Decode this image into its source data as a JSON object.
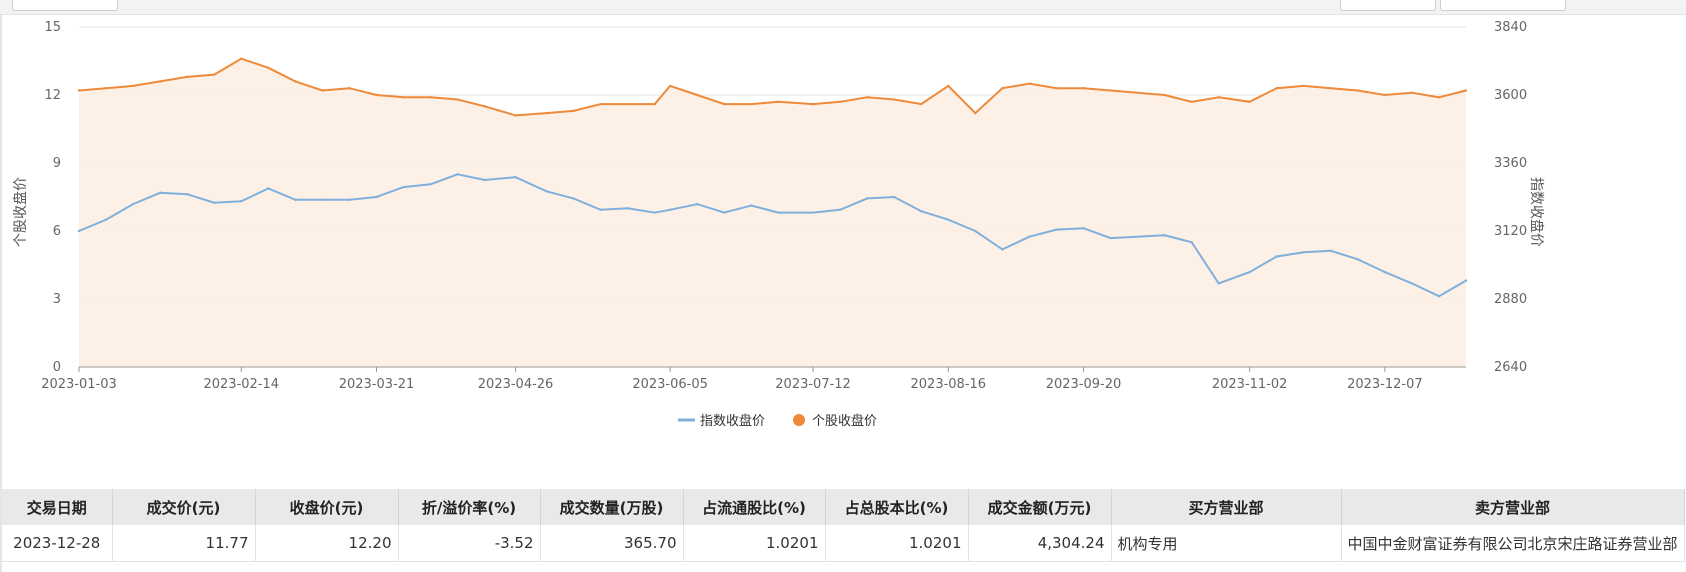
{
  "chart_data": {
    "type": "line",
    "x_ticks": [
      "2023-01-03",
      "2023-02-14",
      "2023-03-21",
      "2023-04-26",
      "2023-06-05",
      "2023-07-12",
      "2023-08-16",
      "2023-09-20",
      "2023-11-02",
      "2023-12-07"
    ],
    "y_left": {
      "label": "个股收盘价",
      "ticks": [
        0,
        3,
        6,
        9,
        12,
        15
      ],
      "range": [
        0,
        15
      ]
    },
    "y_right": {
      "label": "指数收盘价",
      "ticks": [
        2640,
        2880,
        3120,
        3360,
        3600,
        3840
      ],
      "range": [
        2640,
        3840
      ]
    },
    "grid": true,
    "legend_position": "bottom",
    "series": [
      {
        "name": "指数收盘价",
        "axis": "right",
        "color": "#7fb0dc",
        "style": "line",
        "x": [
          "2023-01-03",
          "2023-01-10",
          "2023-01-17",
          "2023-01-24",
          "2023-01-31",
          "2023-02-07",
          "2023-02-14",
          "2023-02-21",
          "2023-02-28",
          "2023-03-07",
          "2023-03-14",
          "2023-03-21",
          "2023-03-28",
          "2023-04-04",
          "2023-04-11",
          "2023-04-18",
          "2023-04-26",
          "2023-05-04",
          "2023-05-11",
          "2023-05-18",
          "2023-05-25",
          "2023-06-01",
          "2023-06-05",
          "2023-06-12",
          "2023-06-19",
          "2023-06-26",
          "2023-07-03",
          "2023-07-12",
          "2023-07-19",
          "2023-07-26",
          "2023-08-02",
          "2023-08-09",
          "2023-08-16",
          "2023-08-23",
          "2023-08-30",
          "2023-09-06",
          "2023-09-13",
          "2023-09-20",
          "2023-09-27",
          "2023-10-11",
          "2023-10-18",
          "2023-10-25",
          "2023-11-02",
          "2023-11-09",
          "2023-11-16",
          "2023-11-23",
          "2023-11-30",
          "2023-12-07",
          "2023-12-14",
          "2023-12-21",
          "2023-12-28"
        ],
        "y": [
          3120,
          3160,
          3215,
          3255,
          3250,
          3220,
          3225,
          3270,
          3230,
          3230,
          3230,
          3240,
          3275,
          3285,
          3320,
          3300,
          3310,
          3260,
          3235,
          3195,
          3200,
          3185,
          3195,
          3215,
          3185,
          3210,
          3185,
          3185,
          3195,
          3235,
          3240,
          3190,
          3160,
          3120,
          3055,
          3100,
          3125,
          3130,
          3095,
          3105,
          3080,
          2935,
          2975,
          3030,
          3045,
          3050,
          3020,
          2975,
          2935,
          2890,
          2945
        ]
      },
      {
        "name": "个股收盘价",
        "axis": "left",
        "color": "#ee8a3a",
        "style": "line-area",
        "x": [
          "2023-01-03",
          "2023-01-10",
          "2023-01-17",
          "2023-01-24",
          "2023-01-31",
          "2023-02-07",
          "2023-02-14",
          "2023-02-21",
          "2023-02-28",
          "2023-03-07",
          "2023-03-14",
          "2023-03-21",
          "2023-03-28",
          "2023-04-04",
          "2023-04-11",
          "2023-04-18",
          "2023-04-26",
          "2023-05-04",
          "2023-05-11",
          "2023-05-18",
          "2023-05-25",
          "2023-06-01",
          "2023-06-05",
          "2023-06-12",
          "2023-06-19",
          "2023-06-26",
          "2023-07-03",
          "2023-07-12",
          "2023-07-19",
          "2023-07-26",
          "2023-08-02",
          "2023-08-09",
          "2023-08-16",
          "2023-08-23",
          "2023-08-30",
          "2023-09-06",
          "2023-09-13",
          "2023-09-20",
          "2023-09-27",
          "2023-10-11",
          "2023-10-18",
          "2023-10-25",
          "2023-11-02",
          "2023-11-09",
          "2023-11-16",
          "2023-11-23",
          "2023-11-30",
          "2023-12-07",
          "2023-12-14",
          "2023-12-21",
          "2023-12-28"
        ],
        "y": [
          12.2,
          12.3,
          12.4,
          12.6,
          12.8,
          12.9,
          13.6,
          13.2,
          12.6,
          12.2,
          12.3,
          12.0,
          11.9,
          11.9,
          11.8,
          11.5,
          11.1,
          11.2,
          11.3,
          11.6,
          11.6,
          11.6,
          12.4,
          12.0,
          11.6,
          11.6,
          11.7,
          11.6,
          11.7,
          11.9,
          11.8,
          11.6,
          12.4,
          11.2,
          12.3,
          12.5,
          12.3,
          12.3,
          12.2,
          12.0,
          11.7,
          11.9,
          11.7,
          12.3,
          12.4,
          12.3,
          12.2,
          12.0,
          12.1,
          11.9,
          12.2
        ]
      }
    ]
  },
  "table": {
    "columns": [
      "交易日期",
      "成交价(元)",
      "收盘价(元)",
      "折/溢价率(%)",
      "成交数量(万股)",
      "占流通股比(%)",
      "占总股本比(%)",
      "成交金额(万元)",
      "买方营业部",
      "卖方营业部"
    ],
    "rows": [
      [
        "2023-12-28",
        "11.77",
        "12.20",
        "-3.52",
        "365.70",
        "1.0201",
        "1.0201",
        "4,304.24",
        "机构专用",
        "中国中金财富证券有限公司北京宋庄路证券营业部"
      ]
    ]
  }
}
